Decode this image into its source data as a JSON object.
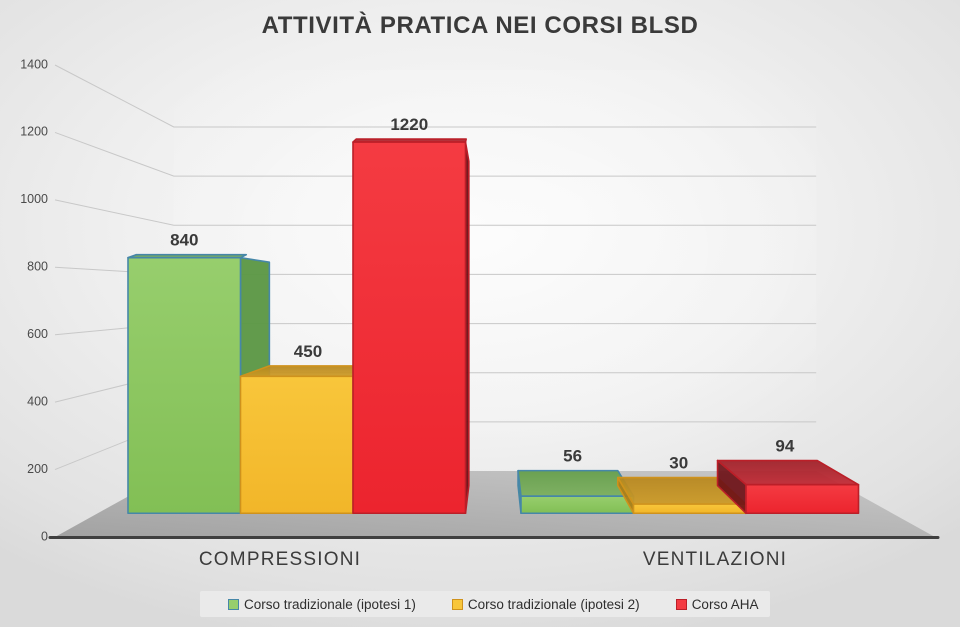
{
  "slide": {
    "title": "ATTIVITÀ PRATICA NEI CORSI BLSD"
  },
  "chart_data": {
    "type": "bar",
    "style_3d": true,
    "title": "ATTIVITÀ PRATICA NEI CORSI BLSD",
    "categories": [
      "COMPRESSIONI",
      "VENTILAZIONI"
    ],
    "series": [
      {
        "name": "Corso tradizionale (ipotesi 1)",
        "values": [
          840,
          56
        ],
        "colors": {
          "front": "#97ce6d",
          "front2": "#82bf55",
          "top": "#649e49",
          "top2": "#7ab05c",
          "side": "#5c9745",
          "stroke": "#4687a8"
        }
      },
      {
        "name": "Corso tradizionale (ipotesi 2)",
        "values": [
          450,
          30
        ],
        "colors": {
          "front": "#f8c63b",
          "front2": "#f2b629",
          "top": "#b8871c",
          "top2": "#cd9a24",
          "side": "#ab7d19",
          "stroke": "#cf921c"
        }
      },
      {
        "name": "Corso AHA",
        "values": [
          1220,
          94
        ],
        "colors": {
          "front": "#f43b42",
          "front2": "#ec242e",
          "top": "#9e1e26",
          "top2": "#c22833",
          "side": "#6e1117",
          "stroke": "#bb1f28"
        }
      }
    ],
    "y_axis": {
      "min": 0,
      "max": 1400,
      "step": 200,
      "ticks": [
        0,
        200,
        400,
        600,
        800,
        1000,
        1200,
        1400
      ]
    },
    "value_labels": [
      [
        840,
        450,
        1220
      ],
      [
        56,
        30,
        94
      ]
    ],
    "grid": true,
    "legend_position": "bottom",
    "background": "#efefef",
    "floor_color": "#a9a9a9",
    "baseline_color": "#3f3f3f",
    "gridline_color": "#c8c8c8",
    "text_color": "#3a3a3a"
  }
}
